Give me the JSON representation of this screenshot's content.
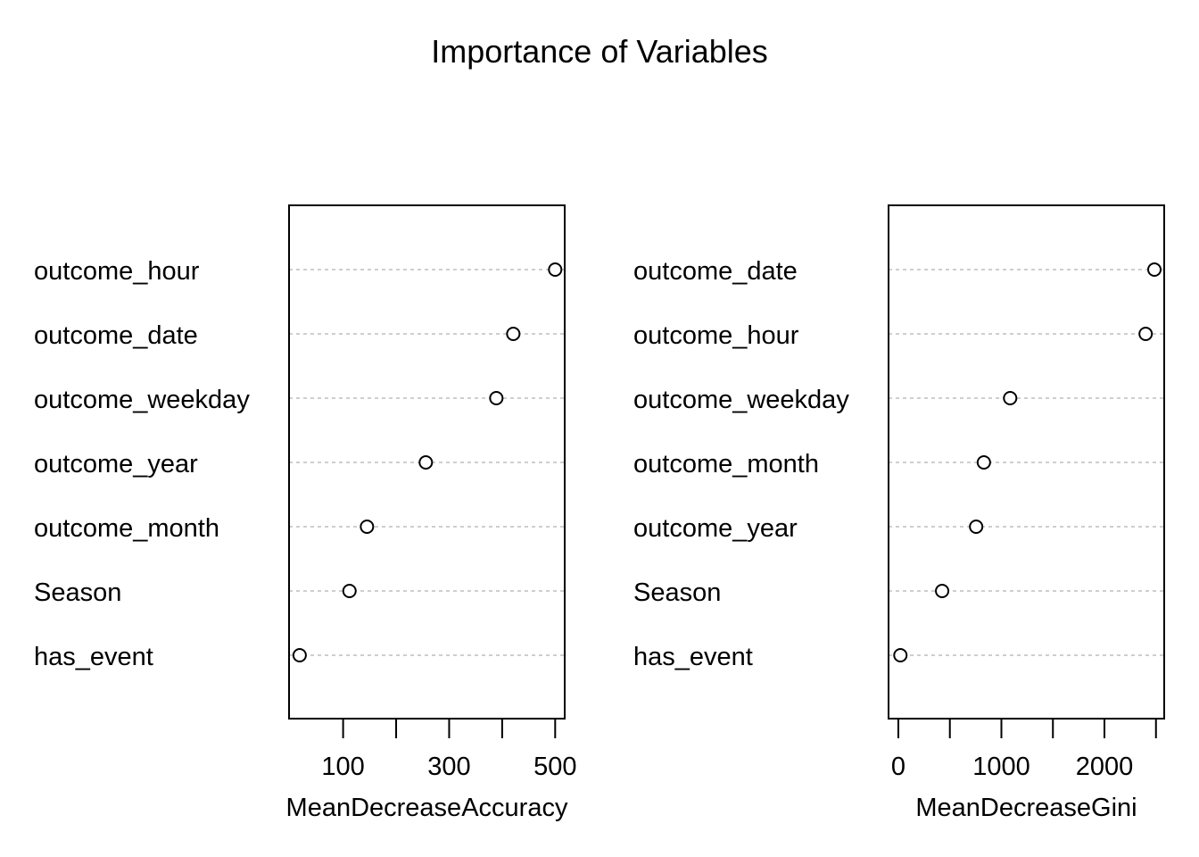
{
  "title": "Importance of Variables",
  "colors": {
    "axis": "#000000",
    "grid": "#bebebe",
    "point_fill": "#ffffff"
  },
  "chart_data": [
    {
      "type": "scatter",
      "variant": "dotchart",
      "xlabel": "MeanDecreaseAccuracy",
      "xlim": [
        -2,
        518
      ],
      "x_ticks": [
        100,
        200,
        300,
        400,
        500
      ],
      "x_tick_labels": [
        "100",
        "",
        "300",
        "",
        "500"
      ],
      "grid": true,
      "categories": [
        "outcome_hour",
        "outcome_date",
        "outcome_weekday",
        "outcome_year",
        "outcome_month",
        "Season",
        "has_event"
      ],
      "values": [
        500,
        421,
        389,
        256,
        145,
        112,
        18
      ]
    },
    {
      "type": "scatter",
      "variant": "dotchart",
      "xlabel": "MeanDecreaseGini",
      "xlim": [
        -95,
        2580
      ],
      "x_ticks": [
        0,
        500,
        1000,
        1500,
        2000,
        2500
      ],
      "x_tick_labels": [
        "0",
        "",
        "1000",
        "",
        "2000",
        ""
      ],
      "grid": true,
      "categories": [
        "outcome_date",
        "outcome_hour",
        "outcome_weekday",
        "outcome_month",
        "outcome_year",
        "Season",
        "has_event"
      ],
      "values": [
        2485,
        2400,
        1085,
        830,
        755,
        425,
        20
      ]
    }
  ]
}
